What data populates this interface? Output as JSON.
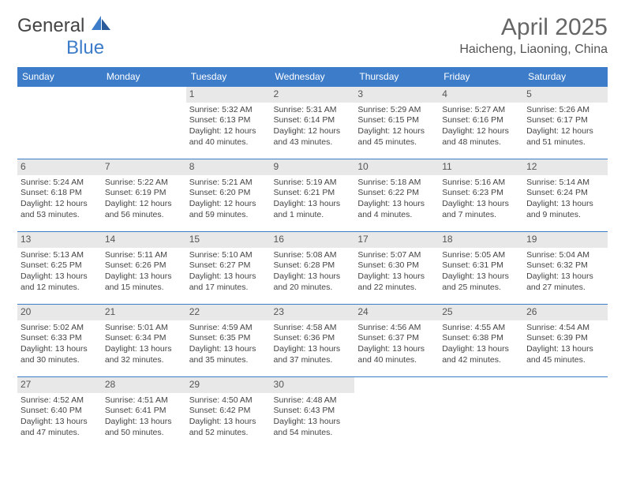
{
  "brand": {
    "text_a": "General",
    "text_b": "Blue"
  },
  "title": "April 2025",
  "location": "Haicheng, Liaoning, China",
  "colors": {
    "header_bg": "#3d7cc9",
    "header_text": "#ffffff",
    "daynum_bg": "#e8e8e8",
    "border": "#3d7cc9",
    "body_text": "#444444",
    "background": "#ffffff"
  },
  "weekdays": [
    "Sunday",
    "Monday",
    "Tuesday",
    "Wednesday",
    "Thursday",
    "Friday",
    "Saturday"
  ],
  "weeks": [
    [
      {
        "empty": true
      },
      {
        "empty": true
      },
      {
        "day": "1",
        "sunrise": "Sunrise: 5:32 AM",
        "sunset": "Sunset: 6:13 PM",
        "dl1": "Daylight: 12 hours",
        "dl2": "and 40 minutes."
      },
      {
        "day": "2",
        "sunrise": "Sunrise: 5:31 AM",
        "sunset": "Sunset: 6:14 PM",
        "dl1": "Daylight: 12 hours",
        "dl2": "and 43 minutes."
      },
      {
        "day": "3",
        "sunrise": "Sunrise: 5:29 AM",
        "sunset": "Sunset: 6:15 PM",
        "dl1": "Daylight: 12 hours",
        "dl2": "and 45 minutes."
      },
      {
        "day": "4",
        "sunrise": "Sunrise: 5:27 AM",
        "sunset": "Sunset: 6:16 PM",
        "dl1": "Daylight: 12 hours",
        "dl2": "and 48 minutes."
      },
      {
        "day": "5",
        "sunrise": "Sunrise: 5:26 AM",
        "sunset": "Sunset: 6:17 PM",
        "dl1": "Daylight: 12 hours",
        "dl2": "and 51 minutes."
      }
    ],
    [
      {
        "day": "6",
        "sunrise": "Sunrise: 5:24 AM",
        "sunset": "Sunset: 6:18 PM",
        "dl1": "Daylight: 12 hours",
        "dl2": "and 53 minutes."
      },
      {
        "day": "7",
        "sunrise": "Sunrise: 5:22 AM",
        "sunset": "Sunset: 6:19 PM",
        "dl1": "Daylight: 12 hours",
        "dl2": "and 56 minutes."
      },
      {
        "day": "8",
        "sunrise": "Sunrise: 5:21 AM",
        "sunset": "Sunset: 6:20 PM",
        "dl1": "Daylight: 12 hours",
        "dl2": "and 59 minutes."
      },
      {
        "day": "9",
        "sunrise": "Sunrise: 5:19 AM",
        "sunset": "Sunset: 6:21 PM",
        "dl1": "Daylight: 13 hours",
        "dl2": "and 1 minute."
      },
      {
        "day": "10",
        "sunrise": "Sunrise: 5:18 AM",
        "sunset": "Sunset: 6:22 PM",
        "dl1": "Daylight: 13 hours",
        "dl2": "and 4 minutes."
      },
      {
        "day": "11",
        "sunrise": "Sunrise: 5:16 AM",
        "sunset": "Sunset: 6:23 PM",
        "dl1": "Daylight: 13 hours",
        "dl2": "and 7 minutes."
      },
      {
        "day": "12",
        "sunrise": "Sunrise: 5:14 AM",
        "sunset": "Sunset: 6:24 PM",
        "dl1": "Daylight: 13 hours",
        "dl2": "and 9 minutes."
      }
    ],
    [
      {
        "day": "13",
        "sunrise": "Sunrise: 5:13 AM",
        "sunset": "Sunset: 6:25 PM",
        "dl1": "Daylight: 13 hours",
        "dl2": "and 12 minutes."
      },
      {
        "day": "14",
        "sunrise": "Sunrise: 5:11 AM",
        "sunset": "Sunset: 6:26 PM",
        "dl1": "Daylight: 13 hours",
        "dl2": "and 15 minutes."
      },
      {
        "day": "15",
        "sunrise": "Sunrise: 5:10 AM",
        "sunset": "Sunset: 6:27 PM",
        "dl1": "Daylight: 13 hours",
        "dl2": "and 17 minutes."
      },
      {
        "day": "16",
        "sunrise": "Sunrise: 5:08 AM",
        "sunset": "Sunset: 6:28 PM",
        "dl1": "Daylight: 13 hours",
        "dl2": "and 20 minutes."
      },
      {
        "day": "17",
        "sunrise": "Sunrise: 5:07 AM",
        "sunset": "Sunset: 6:30 PM",
        "dl1": "Daylight: 13 hours",
        "dl2": "and 22 minutes."
      },
      {
        "day": "18",
        "sunrise": "Sunrise: 5:05 AM",
        "sunset": "Sunset: 6:31 PM",
        "dl1": "Daylight: 13 hours",
        "dl2": "and 25 minutes."
      },
      {
        "day": "19",
        "sunrise": "Sunrise: 5:04 AM",
        "sunset": "Sunset: 6:32 PM",
        "dl1": "Daylight: 13 hours",
        "dl2": "and 27 minutes."
      }
    ],
    [
      {
        "day": "20",
        "sunrise": "Sunrise: 5:02 AM",
        "sunset": "Sunset: 6:33 PM",
        "dl1": "Daylight: 13 hours",
        "dl2": "and 30 minutes."
      },
      {
        "day": "21",
        "sunrise": "Sunrise: 5:01 AM",
        "sunset": "Sunset: 6:34 PM",
        "dl1": "Daylight: 13 hours",
        "dl2": "and 32 minutes."
      },
      {
        "day": "22",
        "sunrise": "Sunrise: 4:59 AM",
        "sunset": "Sunset: 6:35 PM",
        "dl1": "Daylight: 13 hours",
        "dl2": "and 35 minutes."
      },
      {
        "day": "23",
        "sunrise": "Sunrise: 4:58 AM",
        "sunset": "Sunset: 6:36 PM",
        "dl1": "Daylight: 13 hours",
        "dl2": "and 37 minutes."
      },
      {
        "day": "24",
        "sunrise": "Sunrise: 4:56 AM",
        "sunset": "Sunset: 6:37 PM",
        "dl1": "Daylight: 13 hours",
        "dl2": "and 40 minutes."
      },
      {
        "day": "25",
        "sunrise": "Sunrise: 4:55 AM",
        "sunset": "Sunset: 6:38 PM",
        "dl1": "Daylight: 13 hours",
        "dl2": "and 42 minutes."
      },
      {
        "day": "26",
        "sunrise": "Sunrise: 4:54 AM",
        "sunset": "Sunset: 6:39 PM",
        "dl1": "Daylight: 13 hours",
        "dl2": "and 45 minutes."
      }
    ],
    [
      {
        "day": "27",
        "sunrise": "Sunrise: 4:52 AM",
        "sunset": "Sunset: 6:40 PM",
        "dl1": "Daylight: 13 hours",
        "dl2": "and 47 minutes."
      },
      {
        "day": "28",
        "sunrise": "Sunrise: 4:51 AM",
        "sunset": "Sunset: 6:41 PM",
        "dl1": "Daylight: 13 hours",
        "dl2": "and 50 minutes."
      },
      {
        "day": "29",
        "sunrise": "Sunrise: 4:50 AM",
        "sunset": "Sunset: 6:42 PM",
        "dl1": "Daylight: 13 hours",
        "dl2": "and 52 minutes."
      },
      {
        "day": "30",
        "sunrise": "Sunrise: 4:48 AM",
        "sunset": "Sunset: 6:43 PM",
        "dl1": "Daylight: 13 hours",
        "dl2": "and 54 minutes."
      },
      {
        "empty": true
      },
      {
        "empty": true
      },
      {
        "empty": true
      }
    ]
  ]
}
